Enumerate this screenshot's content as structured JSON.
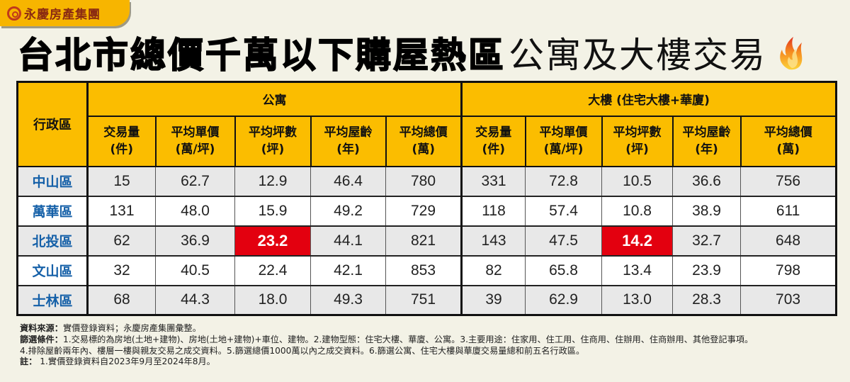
{
  "brand": {
    "name": "永慶房產集團",
    "logo_icon": "yungching-logo-icon"
  },
  "title": {
    "bold": "台北市總價千萬以下購屋熱區",
    "light": "公寓及大樓交易",
    "icon": "flame-icon"
  },
  "table": {
    "district_header": "行政區",
    "groups": [
      {
        "label": "公寓"
      },
      {
        "label": "大樓 (住宅大樓+華廈)"
      }
    ],
    "columns": [
      {
        "line1": "交易量",
        "line2": "(件)"
      },
      {
        "line1": "平均單價",
        "line2": "(萬/坪)"
      },
      {
        "line1": "平均坪數",
        "line2": "(坪)"
      },
      {
        "line1": "平均屋齡",
        "line2": "(年)"
      },
      {
        "line1": "平均總價",
        "line2": "(萬)"
      }
    ],
    "rows": [
      {
        "district": "中山區",
        "apt": [
          "15",
          "62.7",
          "12.9",
          "46.4",
          "780"
        ],
        "bldg": [
          "331",
          "72.8",
          "10.5",
          "36.6",
          "756"
        ]
      },
      {
        "district": "萬華區",
        "apt": [
          "131",
          "48.0",
          "15.9",
          "49.2",
          "729"
        ],
        "bldg": [
          "118",
          "57.4",
          "10.8",
          "38.9",
          "611"
        ]
      },
      {
        "district": "北投區",
        "apt": [
          "62",
          "36.9",
          "23.2",
          "44.1",
          "821"
        ],
        "bldg": [
          "143",
          "47.5",
          "14.2",
          "32.7",
          "648"
        ]
      },
      {
        "district": "文山區",
        "apt": [
          "32",
          "40.5",
          "22.4",
          "42.1",
          "853"
        ],
        "bldg": [
          "82",
          "65.8",
          "13.4",
          "23.9",
          "798"
        ]
      },
      {
        "district": "士林區",
        "apt": [
          "68",
          "44.3",
          "18.0",
          "49.3",
          "751"
        ],
        "bldg": [
          "39",
          "62.9",
          "13.0",
          "28.3",
          "703"
        ]
      }
    ],
    "highlights": [
      {
        "row": 2,
        "group": "apt",
        "col": 2,
        "value": "23.2"
      },
      {
        "row": 2,
        "group": "bldg",
        "col": 2,
        "value": "14.2"
      }
    ]
  },
  "notes": {
    "source_label": "資料來源：",
    "source_text": "實價登錄資料；永慶房產集團彙整。",
    "filter_label": "篩選條件：",
    "filter_text_1": "1.交易標的為房地(土地+建物)、房地(土地+建物)+車位、建物。2.建物型態：住宅大樓、華廈、公寓。3.主要用途：住家用、住工用、住商用、住辦用、住商辦用、其他登記事項。",
    "filter_text_2": "4.排除屋齡兩年內、樓層一樓與親友交易之成交資料。5.篩選總價1000萬以內之成交資料。6.篩選公寓、住宅大樓與華廈交易量總和前五名行政區。",
    "remark_label": "註：",
    "remark_text": " 1.實價登錄資料自2023年9月至2024年8月。"
  },
  "colors": {
    "header_bg": "#fbbd00",
    "highlight": "#e3000f",
    "district_text": "#1560a8",
    "page_bg": "#f3f2e6"
  }
}
